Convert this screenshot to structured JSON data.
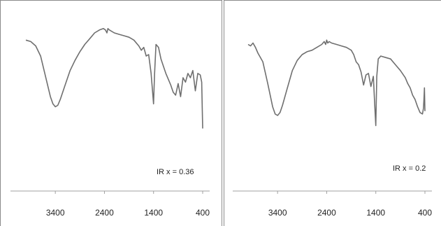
{
  "chart_data": [
    {
      "type": "line",
      "annotation": "IR x = 0.36",
      "x_tick_labels": [
        "3400",
        "2400",
        "1400",
        "400"
      ],
      "x_ticks": [
        3400,
        2400,
        1400,
        400
      ],
      "xlim": [
        4000,
        400
      ],
      "x_reversed": true,
      "y_ticks_shown": false,
      "ylim": [
        0,
        100
      ],
      "grid": false,
      "color": "#6f6f6f",
      "series": [
        {
          "x": [
            4000,
            3900,
            3800,
            3700,
            3600,
            3500,
            3450,
            3400,
            3350,
            3300,
            3200,
            3100,
            3000,
            2900,
            2800,
            2700,
            2600,
            2500,
            2420,
            2380,
            2350,
            2330,
            2300,
            2200,
            2100,
            2000,
            1900,
            1800,
            1700,
            1650,
            1600,
            1550,
            1500,
            1450,
            1400,
            1380,
            1350,
            1300,
            1250,
            1200,
            1150,
            1100,
            1050,
            1000,
            950,
            900,
            850,
            800,
            750,
            700,
            650,
            600,
            550,
            500,
            450,
            420,
            400
          ],
          "y": [
            81,
            80,
            77,
            70,
            56,
            42,
            37,
            35,
            36,
            40,
            50,
            60,
            67,
            73,
            78,
            82,
            86,
            88,
            89,
            88,
            86,
            89,
            88,
            86,
            85,
            84,
            83,
            81,
            77,
            74,
            76,
            70,
            71,
            58,
            37,
            57,
            78,
            76,
            68,
            63,
            58,
            54,
            50,
            45,
            43,
            51,
            42,
            55,
            52,
            58,
            55,
            60,
            46,
            58,
            57,
            52,
            20
          ]
        }
      ]
    },
    {
      "type": "line",
      "annotation": "IR x = 0.2",
      "x_tick_labels": [
        "3400",
        "2400",
        "1400",
        "400"
      ],
      "x_ticks": [
        3400,
        2400,
        1400,
        400
      ],
      "xlim": [
        4000,
        400
      ],
      "x_reversed": true,
      "y_ticks_shown": false,
      "ylim": [
        0,
        100
      ],
      "grid": false,
      "color": "#6f6f6f",
      "series": [
        {
          "x": [
            4000,
            3950,
            3900,
            3850,
            3800,
            3700,
            3600,
            3500,
            3450,
            3400,
            3350,
            3300,
            3200,
            3100,
            3000,
            2900,
            2800,
            2700,
            2600,
            2500,
            2450,
            2420,
            2400,
            2380,
            2350,
            2300,
            2200,
            2100,
            2000,
            1900,
            1850,
            1800,
            1750,
            1700,
            1650,
            1600,
            1550,
            1500,
            1450,
            1420,
            1400,
            1380,
            1350,
            1300,
            1200,
            1100,
            1000,
            900,
            800,
            750,
            700,
            650,
            600,
            550,
            500,
            450,
            430,
            420,
            410,
            400
          ],
          "y": [
            78,
            77,
            79,
            76,
            72,
            66,
            51,
            35,
            30,
            29,
            31,
            36,
            48,
            60,
            67,
            71,
            73,
            74,
            76,
            78,
            80,
            78,
            81,
            79,
            80,
            79,
            78,
            77,
            76,
            74,
            71,
            66,
            64,
            59,
            50,
            57,
            58,
            49,
            56,
            35,
            22,
            56,
            68,
            70,
            69,
            68,
            64,
            60,
            55,
            51,
            48,
            43,
            40,
            35,
            31,
            30,
            34,
            40,
            48,
            32
          ]
        }
      ]
    }
  ]
}
